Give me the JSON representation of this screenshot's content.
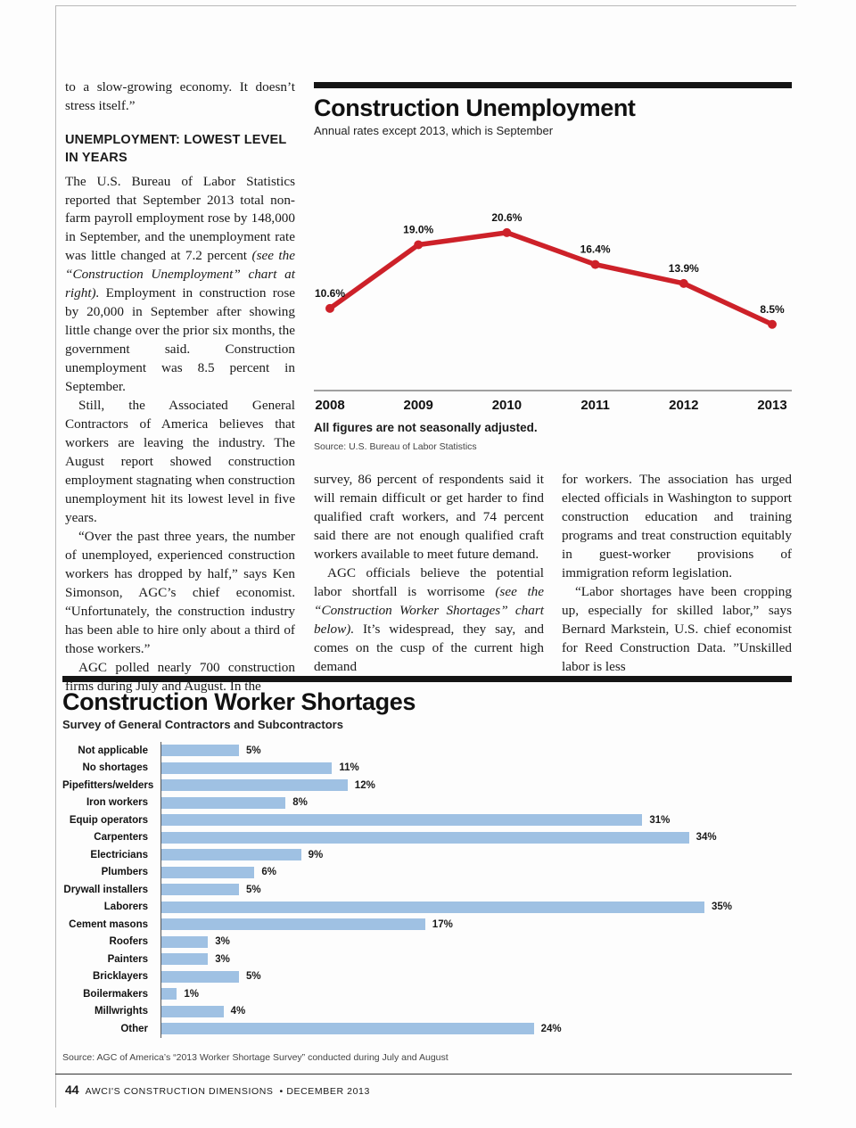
{
  "page": {
    "footer": {
      "page_number": "44",
      "journal": "AWCI'S CONSTRUCTION DIMENSIONS",
      "issue": "• DECEMBER 2013"
    }
  },
  "article": {
    "left_column": {
      "heading": "UNEMPLOYMENT: LOWEST LEVEL IN YEARS",
      "paragraphs": [
        {
          "indent": false,
          "runs": [
            {
              "t": "to a slow-growing economy. It doesn’t stress itself.”"
            }
          ]
        }
      ],
      "paragraphs_after_heading": [
        {
          "indent": false,
          "runs": [
            {
              "t": "The U.S. Bureau of Labor Statistics reported that September 2013 total non-farm payroll employment rose by 148,000 in September, and the unemployment rate was little changed at 7.2 percent "
            },
            {
              "t": "(see the “Construction Unemployment” chart at right).",
              "i": true
            },
            {
              "t": " Employment in construction rose by 20,000 in September after showing little change over the prior six months, the government said. Construction unemployment was 8.5 percent in September."
            }
          ]
        },
        {
          "indent": true,
          "runs": [
            {
              "t": "Still, the Associated General Contractors of America believes that workers are leaving the industry. The August report showed construction employment stagnating when construction unemployment hit its lowest level in five years."
            }
          ]
        },
        {
          "indent": true,
          "runs": [
            {
              "t": "“Over the past three years, the number of unemployed, experienced construction workers has dropped by half,” says Ken Simonson, AGC’s chief economist. “Unfortunately, the construction industry has been able to hire only about a third of those workers.”"
            }
          ]
        },
        {
          "indent": true,
          "runs": [
            {
              "t": "AGC polled nearly 700 construction firms during July and August. In the"
            }
          ]
        }
      ]
    },
    "middle_column": {
      "paragraphs": [
        {
          "indent": false,
          "runs": [
            {
              "t": "survey, 86 percent of respondents said it will remain difficult or get harder to find qualified craft workers, and 74 percent said there are not enough qualified craft workers available to meet future demand."
            }
          ]
        },
        {
          "indent": true,
          "runs": [
            {
              "t": "AGC officials believe the potential labor shortfall is worrisome "
            },
            {
              "t": "(see the “Construction Worker Shortages” chart below).",
              "i": true
            },
            {
              "t": " It’s widespread, they say, and comes on the cusp of the current high demand"
            }
          ]
        }
      ]
    },
    "right_column": {
      "paragraphs": [
        {
          "indent": false,
          "runs": [
            {
              "t": "for workers. The association has urged elected officials in Washington to support construction education and training programs and treat construction equitably in guest-worker provisions of immigration reform legislation."
            }
          ]
        },
        {
          "indent": true,
          "runs": [
            {
              "t": "“Labor shortages have been cropping up, especially for skilled labor,” says Bernard Markstein, U.S. chief economist for Reed Construction Data. ”Unskilled labor is less"
            }
          ]
        }
      ]
    }
  },
  "chart_data": [
    {
      "type": "line",
      "title": "Construction Unemployment",
      "subtitle": "Annual rates except 2013, which is September",
      "categories": [
        "2008",
        "2009",
        "2010",
        "2011",
        "2012",
        "2013"
      ],
      "values": [
        10.6,
        19.0,
        20.6,
        16.4,
        13.9,
        8.5
      ],
      "value_labels": [
        "10.6%",
        "19.0%",
        "20.6%",
        "16.4%",
        "13.9%",
        "8.5%"
      ],
      "note": "All figures are not seasonally adjusted.",
      "source": "Source: U.S. Bureau of Labor Statistics",
      "line_color": "#cd2129",
      "ylim": [
        0,
        25
      ],
      "grid": false,
      "legend": "none"
    },
    {
      "type": "bar",
      "orientation": "horizontal",
      "title": "Construction Worker Shortages",
      "subtitle": "Survey of General Contractors and Subcontractors",
      "categories": [
        "Not applicable",
        "No shortages",
        "Pipefitters/welders",
        "Iron workers",
        "Equip operators",
        "Carpenters",
        "Electricians",
        "Plumbers",
        "Drywall installers",
        "Laborers",
        "Cement masons",
        "Roofers",
        "Painters",
        "Bricklayers",
        "Boilermakers",
        "Millwrights",
        "Other"
      ],
      "values": [
        5,
        11,
        12,
        8,
        31,
        34,
        9,
        6,
        5,
        35,
        17,
        3,
        3,
        5,
        1,
        4,
        24
      ],
      "value_labels": [
        "5%",
        "11%",
        "12%",
        "8%",
        "31%",
        "34%",
        "9%",
        "6%",
        "5%",
        "35%",
        "17%",
        "3%",
        "3%",
        "5%",
        "1%",
        "4%",
        "24%"
      ],
      "source": "Source: AGC of America’s “2013 Worker Shortage Survey” conducted during July and August",
      "bar_color": "#9fc1e3",
      "xlim": [
        0,
        36
      ]
    }
  ]
}
